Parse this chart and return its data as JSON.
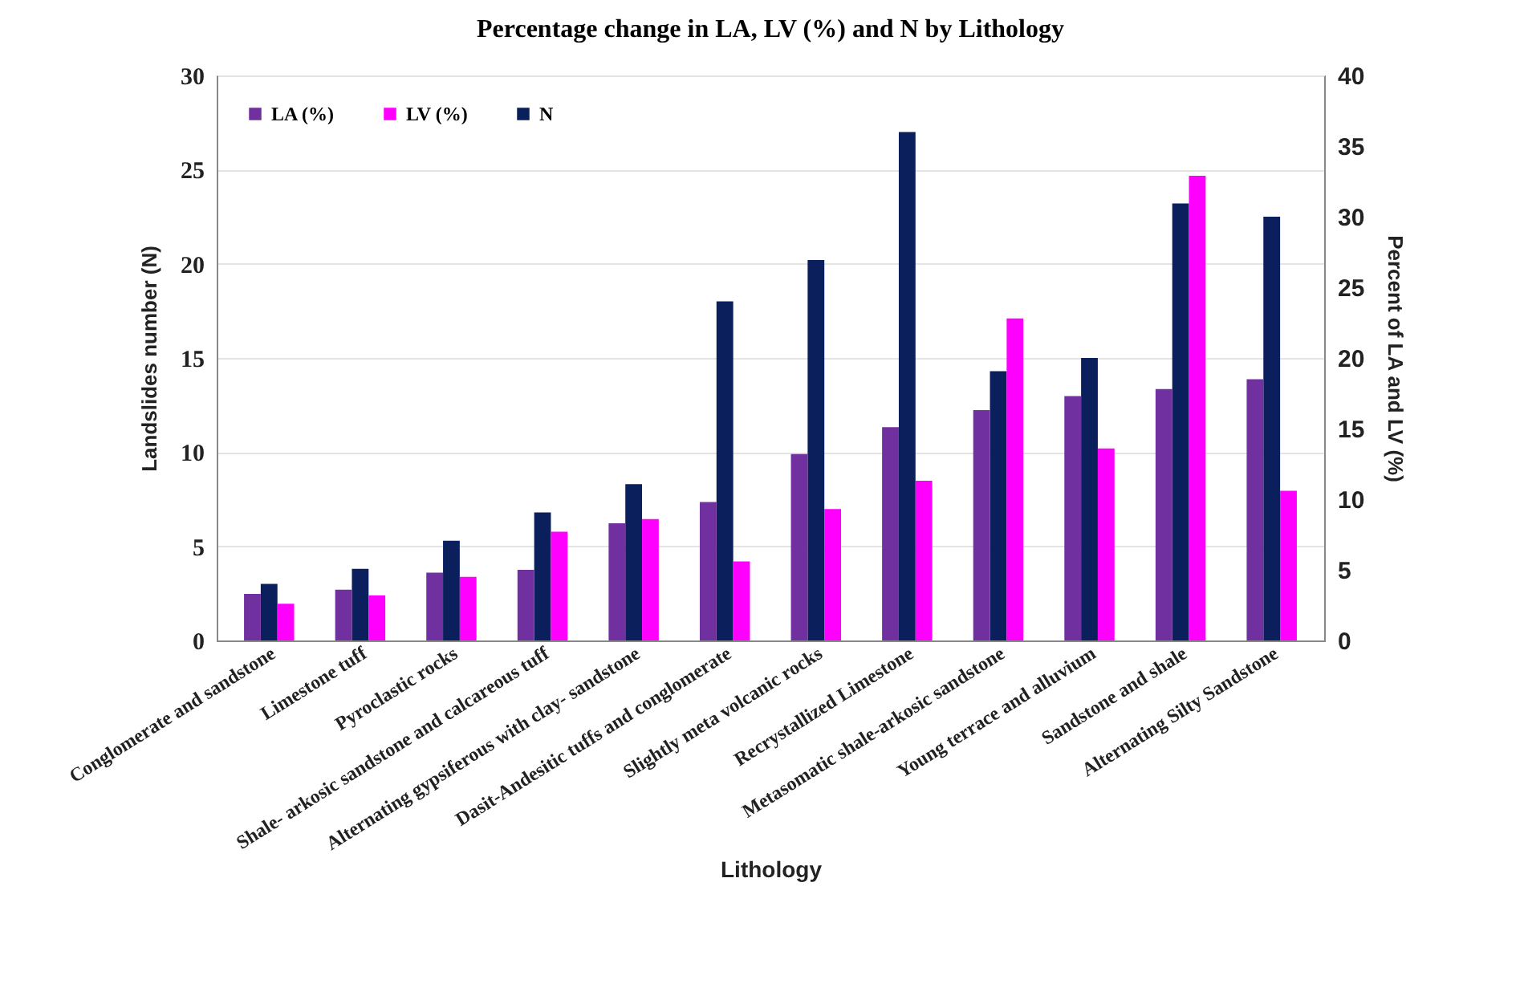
{
  "chart_data": {
    "type": "bar",
    "title": "Percentage change in LA, LV (%) and N by Lithology",
    "xlabel": "Lithology",
    "ylabel": "Landslides number (N)",
    "y2label": "Percent of LA and LV (%)",
    "categories": [
      "Conglomerate and sandstone",
      "Limestone tuff",
      "Pyroclastic rocks",
      "Shale- arkosic sandstone and calcareous tuff",
      "Alternating gypsiferous with clay- sandstone",
      "Dasit-Andesitic tuffs and conglomerate",
      "Slightly meta volcanic rocks",
      "Recrystallized Limestone",
      "Metasomatic shale-arkosic sandstone",
      "Young terrace and alluvium",
      "Sandstone and shale",
      "Alternating Silty Sandstone"
    ],
    "series": [
      {
        "name": "LA (%)",
        "color": "#7030a0",
        "axis": "y2",
        "values": [
          3.3,
          3.6,
          4.8,
          5.0,
          8.3,
          9.8,
          13.2,
          15.1,
          16.3,
          17.3,
          17.8,
          18.5
        ]
      },
      {
        "name": "LV (%)",
        "color": "#ff00ff",
        "axis": "y2",
        "values": [
          2.6,
          3.2,
          4.5,
          7.7,
          8.6,
          5.6,
          9.3,
          11.3,
          22.8,
          13.6,
          32.9,
          10.6
        ]
      },
      {
        "name": "N",
        "color": "#0a1f5c",
        "axis": "y",
        "values": [
          3.0,
          3.8,
          5.3,
          6.8,
          8.3,
          18.0,
          20.2,
          27.0,
          14.3,
          15.0,
          23.2,
          22.5
        ]
      }
    ],
    "ylim": [
      0,
      30
    ],
    "yticks": [
      0,
      5,
      10,
      15,
      20,
      25,
      30
    ],
    "y2lim": [
      0,
      40
    ],
    "y2ticks": [
      0,
      5,
      10,
      15,
      20,
      25,
      30,
      35,
      40
    ],
    "grid": "y",
    "legend": "top left"
  }
}
